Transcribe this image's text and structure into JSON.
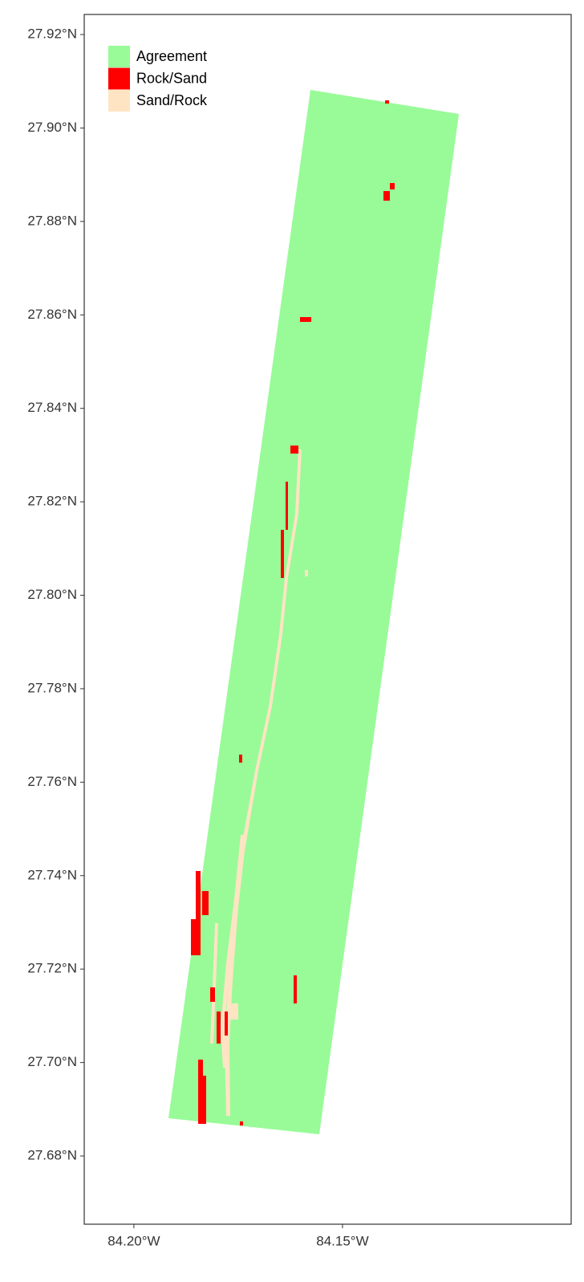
{
  "chart_data": {
    "type": "map",
    "ylim": [
      27.6654,
      27.9243
    ],
    "xlim": [
      -84.2119,
      -84.0952
    ],
    "yticks": [
      {
        "value": 27.68,
        "label": "27.68°N"
      },
      {
        "value": 27.7,
        "label": "27.70°N"
      },
      {
        "value": 27.72,
        "label": "27.72°N"
      },
      {
        "value": 27.74,
        "label": "27.74°N"
      },
      {
        "value": 27.76,
        "label": "27.76°N"
      },
      {
        "value": 27.78,
        "label": "27.78°N"
      },
      {
        "value": 27.8,
        "label": "27.80°N"
      },
      {
        "value": 27.82,
        "label": "27.82°N"
      },
      {
        "value": 27.84,
        "label": "27.84°N"
      },
      {
        "value": 27.86,
        "label": "27.86°N"
      },
      {
        "value": 27.88,
        "label": "27.88°N"
      },
      {
        "value": 27.9,
        "label": "27.90°N"
      },
      {
        "value": 27.92,
        "label": "27.92°N"
      }
    ],
    "xticks": [
      {
        "value": -84.2,
        "label": "84.20°W"
      },
      {
        "value": -84.15,
        "label": "84.15°W"
      }
    ],
    "legend": [
      {
        "label": "Agreement",
        "color": "#98fb98"
      },
      {
        "label": "Rock/Sand",
        "color": "#ff0000"
      },
      {
        "label": "Sand/Rock",
        "color": "#ffe4c4"
      }
    ]
  }
}
